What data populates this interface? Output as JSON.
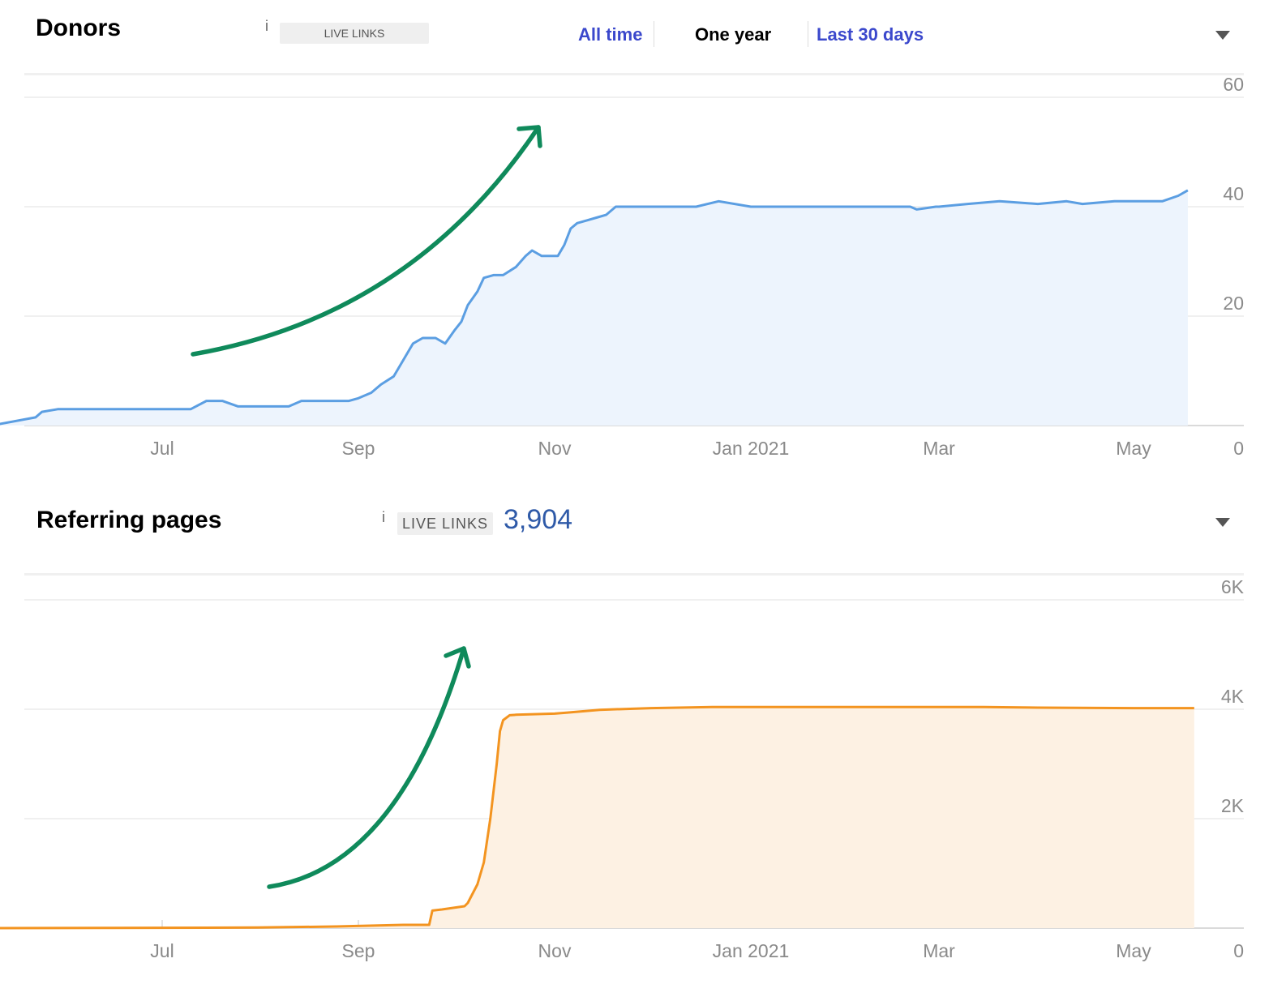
{
  "donors_panel": {
    "title": "Donors",
    "info": "i",
    "badge": "LIVE LINKS",
    "ranges": [
      "All time",
      "One year",
      "Last 30 days"
    ],
    "active_range": "One year",
    "colors": {
      "link": "#3b48cc",
      "active": "#000000"
    }
  },
  "pages_panel": {
    "title": "Referring pages",
    "info": "i",
    "badge": "LIVE LINKS",
    "count": "3,904"
  },
  "chart_data": [
    {
      "type": "area",
      "title": "Donors",
      "xlabel": "",
      "ylabel": "",
      "x_ticks": [
        "Jul",
        "Sep",
        "Nov",
        "Jan 2021",
        "Mar",
        "May"
      ],
      "y_ticks": [
        "0",
        "20",
        "40",
        "60"
      ],
      "ylim": [
        0,
        60
      ],
      "y_axis_position": "right",
      "grid": true,
      "colors": {
        "line": "#5b9ee2",
        "fill": "#edf4fd"
      },
      "x": [
        "2020-05-08",
        "2020-05-22",
        "2020-05-24",
        "2020-05-29",
        "2020-06-01",
        "2020-07-10",
        "2020-07-15",
        "2020-07-20",
        "2020-07-25",
        "2020-08-10",
        "2020-08-14",
        "2020-08-29",
        "2020-09-01",
        "2020-09-05",
        "2020-09-08",
        "2020-09-12",
        "2020-09-15",
        "2020-09-18",
        "2020-09-21",
        "2020-09-25",
        "2020-09-28",
        "2020-10-01",
        "2020-10-03",
        "2020-10-05",
        "2020-10-08",
        "2020-10-10",
        "2020-10-13",
        "2020-10-16",
        "2020-10-20",
        "2020-10-23",
        "2020-10-25",
        "2020-10-28",
        "2020-10-30",
        "2020-11-02",
        "2020-11-04",
        "2020-11-06",
        "2020-11-08",
        "2020-11-11",
        "2020-11-14",
        "2020-11-17",
        "2020-11-20",
        "2020-12-15",
        "2020-12-22",
        "2021-01-01",
        "2021-02-20",
        "2021-02-22",
        "2021-02-28",
        "2021-03-01",
        "2021-03-10",
        "2021-03-20",
        "2021-04-01",
        "2021-04-10",
        "2021-04-15",
        "2021-04-25",
        "2021-05-05",
        "2021-05-10",
        "2021-05-15",
        "2021-05-18"
      ],
      "series": [
        {
          "name": "",
          "values": [
            0,
            1.5,
            2.5,
            3,
            3,
            3,
            4.5,
            4.5,
            3.5,
            3.5,
            4.5,
            4.5,
            5,
            6,
            7.5,
            9,
            12,
            15,
            16,
            16,
            15,
            17.5,
            19,
            22,
            24.5,
            27,
            27.5,
            27.5,
            29,
            31,
            32,
            31,
            31,
            31,
            33,
            36,
            37,
            37.5,
            38,
            38.5,
            40,
            40,
            41,
            40,
            40,
            39.5,
            40,
            40,
            40.5,
            41,
            40.5,
            41,
            40.5,
            41,
            41,
            41,
            42,
            43
          ]
        }
      ]
    },
    {
      "type": "area",
      "title": "Referring pages",
      "xlabel": "",
      "ylabel": "",
      "x_ticks": [
        "Jul",
        "Sep",
        "Nov",
        "Jan 2021",
        "Mar",
        "May"
      ],
      "y_ticks": [
        "0",
        "2K",
        "4K",
        "6K"
      ],
      "ylim": [
        0,
        6000
      ],
      "y_axis_position": "right",
      "grid": true,
      "colors": {
        "line": "#f39420",
        "fill": "#fdf1e3"
      },
      "x": [
        "2020-05-08",
        "2020-06-15",
        "2020-07-31",
        "2020-08-25",
        "2020-09-15",
        "2020-09-23",
        "2020-09-24",
        "2020-09-27",
        "2020-10-04",
        "2020-10-05",
        "2020-10-08",
        "2020-10-10",
        "2020-10-11",
        "2020-10-12",
        "2020-10-14",
        "2020-10-15",
        "2020-10-16",
        "2020-10-18",
        "2020-10-20",
        "2020-11-01",
        "2020-11-05",
        "2020-11-15",
        "2020-12-01",
        "2020-12-20",
        "2021-01-15",
        "2021-02-15",
        "2021-03-01",
        "2021-03-15",
        "2021-04-01",
        "2021-05-01",
        "2021-05-20"
      ],
      "series": [
        {
          "name": "",
          "values": [
            0,
            5,
            10,
            30,
            60,
            60,
            320,
            340,
            400,
            460,
            800,
            1200,
            1600,
            2000,
            3000,
            3600,
            3800,
            3890,
            3900,
            3920,
            3940,
            3990,
            4020,
            4040,
            4040,
            4040,
            4040,
            4040,
            4030,
            4020,
            4020
          ]
        }
      ]
    }
  ]
}
